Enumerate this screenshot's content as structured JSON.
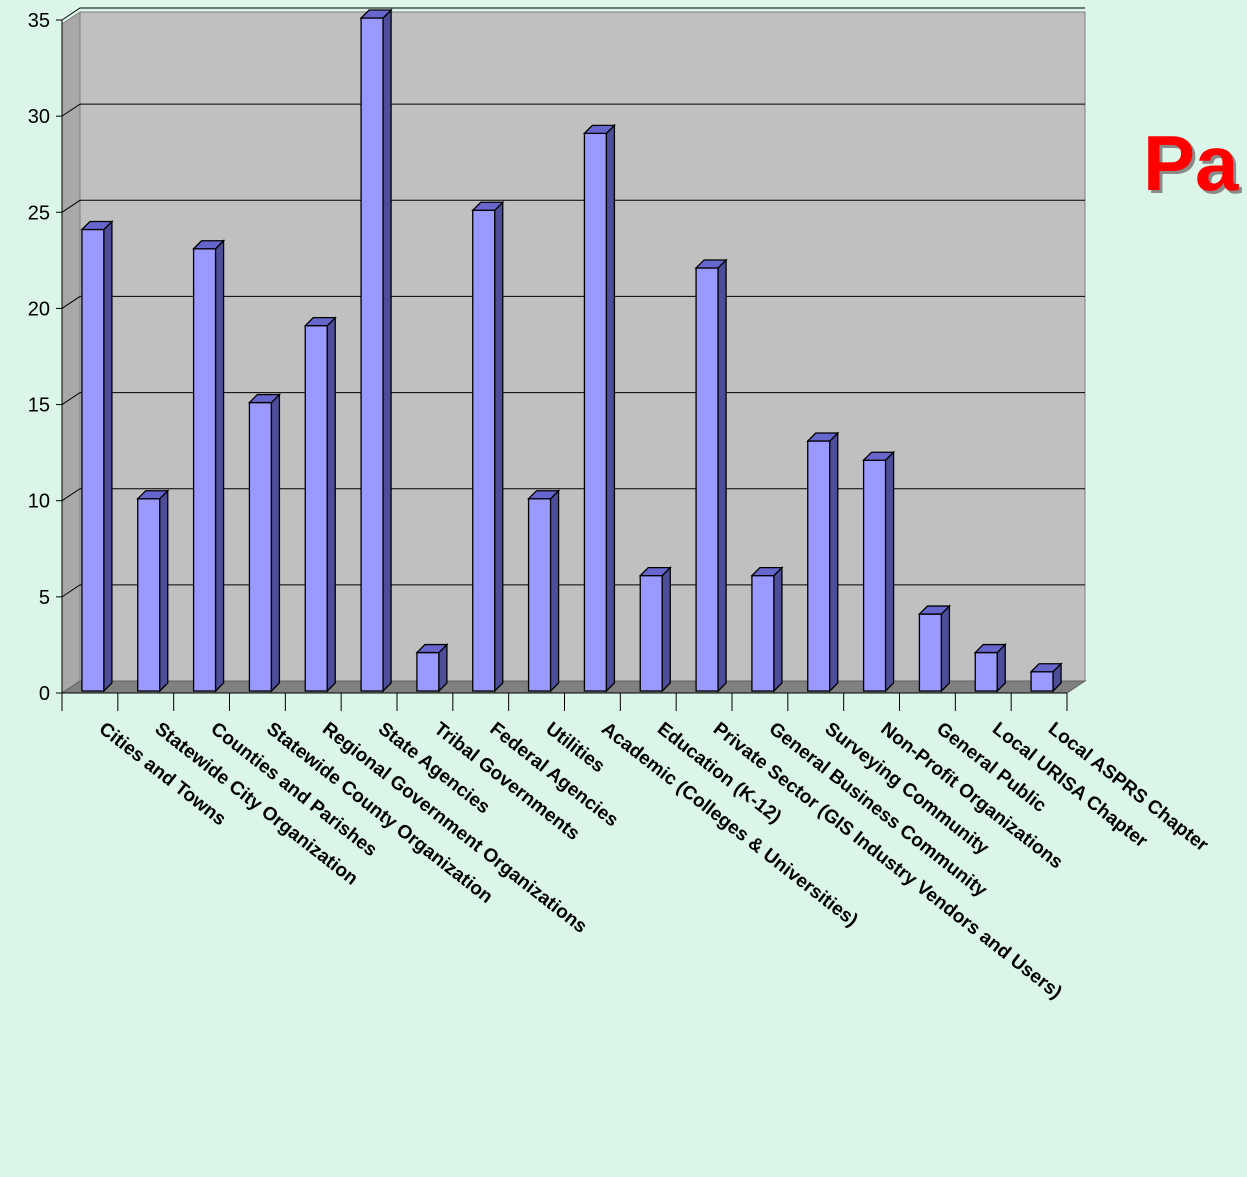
{
  "slide": {
    "title_fragment": "Pa"
  },
  "colors": {
    "background": "#dbf5e8",
    "plot_back_wall": "#c0c0c0",
    "plot_floor": "#808080",
    "bar_front": "#9999ff",
    "bar_side": "#4d4d99",
    "bar_top": "#6666cc",
    "title": "#ff0000"
  },
  "chart_data": {
    "type": "bar",
    "style": "3d-column",
    "categories": [
      "Cities and Towns",
      "Statewide City Organization",
      "Counties and Parishes",
      "Statewide County Organization",
      "Regional Government Organizations",
      "State Agencies",
      "Tribal Governments",
      "Federal Agencies",
      "Utilities",
      "Academic (Colleges & Universities)",
      "Education (K-12)",
      "Private Sector (GIS Industry Vendors and Users)",
      "General Business Community",
      "Surveying Community",
      "Non-Profit Organizations",
      "General Public",
      "Local URISA Chapter",
      "Local ASPRS Chapter"
    ],
    "values": [
      24,
      10,
      23,
      15,
      19,
      35,
      2,
      25,
      10,
      29,
      6,
      22,
      6,
      13,
      12,
      4,
      2,
      1
    ],
    "ylim": [
      0,
      35
    ],
    "yticks": [
      0,
      5,
      10,
      15,
      20,
      25,
      30,
      35
    ],
    "title": "",
    "xlabel": "",
    "ylabel": "",
    "grid": true,
    "legend": "none"
  }
}
